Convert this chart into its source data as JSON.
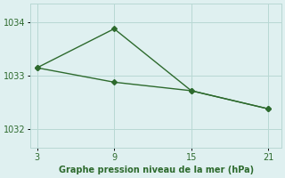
{
  "line1_x": [
    3,
    9,
    15,
    21
  ],
  "line1_y": [
    1033.15,
    1033.88,
    1032.72,
    1032.38
  ],
  "line2_x": [
    3,
    9,
    15,
    21
  ],
  "line2_y": [
    1033.15,
    1032.88,
    1032.72,
    1032.38
  ],
  "xticks": [
    3,
    9,
    15,
    21
  ],
  "yticks": [
    1032,
    1033,
    1034
  ],
  "xlim": [
    2.5,
    22
  ],
  "ylim": [
    1031.65,
    1034.35
  ],
  "xlabel": "Graphe pression niveau de la mer (hPa)",
  "line_color": "#2d6a2d",
  "bg_color": "#dff0f0",
  "grid_color": "#b8d8d4",
  "markersize": 3,
  "linewidth": 1.0
}
